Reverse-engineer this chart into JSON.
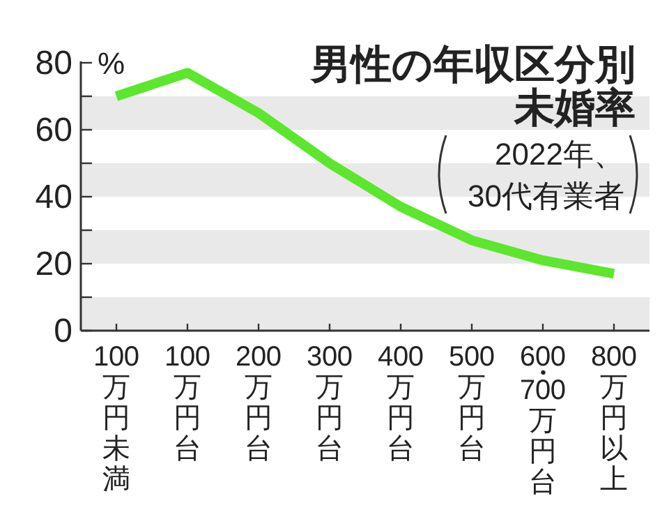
{
  "chart_data": {
    "type": "line",
    "title": "男性の年収区分別未婚率",
    "subtitle": "2022年、\n30代有業者",
    "ylabel": "%",
    "categories": [
      "100万円未満",
      "100万円台",
      "200万円台",
      "300万円台",
      "400万円台",
      "500万円台",
      "600・700万円台",
      "800万円以上"
    ],
    "series": [
      {
        "color": "#5ce62e",
        "values": [
          70,
          77,
          65,
          50,
          37,
          27,
          21,
          17
        ]
      }
    ],
    "ylim": [
      0,
      80
    ],
    "yticks": [
      0,
      {
        "value": 10,
        "label": null
      },
      20,
      {
        "value": 30,
        "label": null
      },
      40,
      {
        "value": 50,
        "label": null
      },
      60,
      {
        "value": 70,
        "label": null
      },
      80
    ],
    "bands": [
      {
        "axis": "y",
        "from": 0,
        "to": 10,
        "color": "#e9e9e9"
      },
      {
        "axis": "y",
        "from": 20,
        "to": 30,
        "color": "#e9e9e9"
      },
      {
        "axis": "y",
        "from": 40,
        "to": 50,
        "color": "#e9e9e9"
      },
      {
        "axis": "y",
        "from": 60,
        "to": 70,
        "color": "#e9e9e9"
      }
    ]
  }
}
